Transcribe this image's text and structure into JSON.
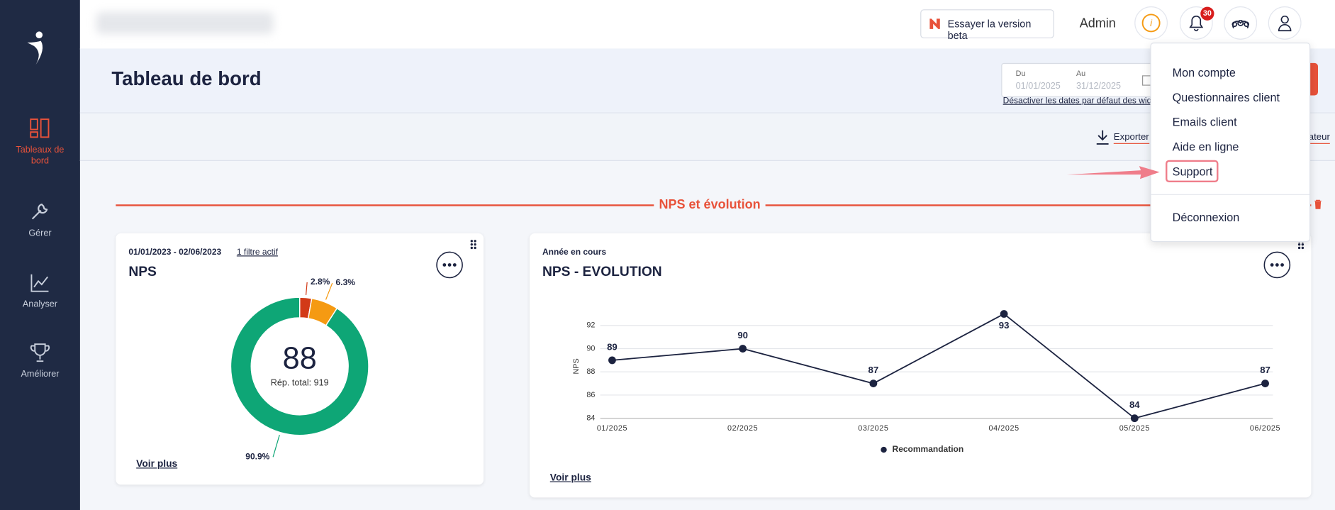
{
  "sidebar": {
    "items": [
      "Tableaux de bord",
      "Gérer",
      "Analyser",
      "Améliorer"
    ]
  },
  "topbar": {
    "beta_button": "Essayer la version beta",
    "user": "Admin",
    "notification_count": 30
  },
  "header": {
    "title": "Tableau de bord",
    "date_from_label": "Du",
    "date_from": "01/01/2025",
    "date_to_label": "Au",
    "date_to": "31/12/2025",
    "disable_link": "Désactiver les dates par défaut des widg"
  },
  "toolbar": {
    "export": "Exporter",
    "right_fragment": "ateur"
  },
  "section": {
    "title": "NPS et évolution"
  },
  "menu": {
    "items": [
      "Mon compte",
      "Questionnaires client",
      "Emails client",
      "Aide en ligne",
      "Support",
      "Déconnexion"
    ]
  },
  "widgets": [
    {
      "period": "01/01/2023 - 02/06/2023",
      "filter": "1 filtre actif",
      "more": "Voir plus"
    },
    {
      "period": "Année en cours",
      "more": "Voir plus"
    }
  ],
  "chart_data": [
    {
      "type": "pie",
      "title": "NPS",
      "values": [
        2.8,
        6.3,
        90.9
      ],
      "value_labels": [
        "2.8%",
        "6.3%",
        "90.9%"
      ],
      "colors": [
        "#d23a17",
        "#f59a12",
        "#0ea676"
      ],
      "center_value": 88,
      "center_label": "Rép. total: 919"
    },
    {
      "type": "line",
      "title": "NPS - EVOLUTION",
      "y_label": "NPS",
      "categories": [
        "01/2025",
        "02/2025",
        "03/2025",
        "04/2025",
        "05/2025",
        "06/2025"
      ],
      "series": [
        {
          "name": "Recommandation",
          "color": "#1c2340",
          "values": [
            89,
            90,
            87,
            93,
            84,
            87
          ]
        }
      ],
      "ylim": [
        84,
        93
      ],
      "yticks": [
        84,
        86,
        88,
        90,
        92
      ],
      "grid": true
    }
  ]
}
